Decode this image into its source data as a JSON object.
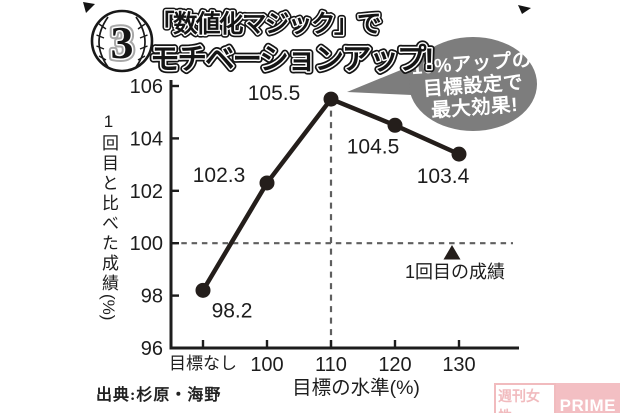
{
  "header": {
    "badge_number": "3",
    "title_line1": "「数値化マジック」で",
    "title_line2": "モチベーションアップ!"
  },
  "bubble": {
    "line1": "10%アップの",
    "line2": "目標設定で",
    "line3": "最大効果!",
    "color": "#7d7d7d"
  },
  "chart_data": {
    "type": "line",
    "categories": [
      "目標なし",
      "100",
      "110",
      "120",
      "130"
    ],
    "values": [
      98.2,
      102.3,
      105.5,
      104.5,
      103.4
    ],
    "xlabel": "目標の水準(%)",
    "ylabel": "1回目と比べた成績(%)",
    "ylabel_main": "1回目と比べた成績",
    "ylabel_unit": "(%)",
    "ylim": [
      96,
      106
    ],
    "y_ticks": [
      96,
      98,
      100,
      102,
      104,
      106
    ],
    "baseline": {
      "value": 100,
      "label": "1回目の成績"
    },
    "highlight_category": "110",
    "grid": false,
    "legend": false,
    "line_color": "#241e1b",
    "dash_color": "#5f5f5f"
  },
  "footer": {
    "source": "出典:杉原・海野",
    "watermark_text": "週刊女性",
    "watermark_brand": "PRIME",
    "watermark_color": "#f0b4b8"
  }
}
